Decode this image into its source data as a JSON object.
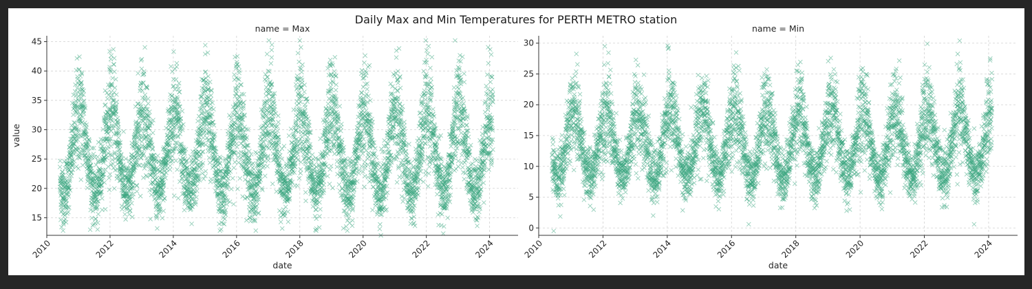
{
  "title": "Daily Max and Min Temperatures for PERTH METRO station",
  "colors": {
    "marker": "#3aa57f",
    "figure_bg": "#ffffff",
    "frame": "#262626"
  },
  "chart_data": [
    {
      "type": "scatter",
      "title": "name = Max",
      "xlabel": "date",
      "ylabel": "value",
      "xlim": [
        "2010",
        "2024.9"
      ],
      "ylim": [
        12,
        46
      ],
      "xticks": [
        "2010",
        "2012",
        "2014",
        "2016",
        "2018",
        "2020",
        "2022",
        "2024"
      ],
      "yticks": [
        15,
        20,
        25,
        30,
        35,
        40,
        45
      ],
      "marker": "x",
      "grid": true,
      "series": [
        {
          "x_range": [
            "2010-06-01",
            "2024-02-10"
          ],
          "seasonal_model": {
            "winter_mean": 19,
            "summer_mean": 33,
            "spread": 5,
            "peak": "January"
          },
          "points": [
            {
              "x": "2010-06-20",
              "y": 13.4
            },
            {
              "x": "2011-01-05",
              "y": 40.2
            },
            {
              "x": "2011-08-10",
              "y": 13.0
            },
            {
              "x": "2012-01-10",
              "y": 42.0
            },
            {
              "x": "2013-01-02",
              "y": 42.0
            },
            {
              "x": "2014-01-05",
              "y": 43.3
            },
            {
              "x": "2015-01-05",
              "y": 44.4
            },
            {
              "x": "2016-01-10",
              "y": 42.5
            },
            {
              "x": "2017-02-10",
              "y": 42.3
            },
            {
              "x": "2019-06-20",
              "y": 13.5
            },
            {
              "x": "2020-01-15",
              "y": 41.4
            },
            {
              "x": "2020-07-25",
              "y": 12.0
            },
            {
              "x": "2021-01-20",
              "y": 42.3
            },
            {
              "x": "2022-01-05",
              "y": 43.5
            },
            {
              "x": "2022-07-15",
              "y": 12.3
            },
            {
              "x": "2024-01-20",
              "y": 42.8
            }
          ]
        }
      ]
    },
    {
      "type": "scatter",
      "title": "name = Min",
      "xlabel": "date",
      "ylabel": "",
      "xlim": [
        "2010",
        "2024.9"
      ],
      "ylim": [
        -1.2,
        31.2
      ],
      "xticks": [
        "2010",
        "2012",
        "2014",
        "2016",
        "2018",
        "2020",
        "2022",
        "2024"
      ],
      "yticks": [
        0,
        5,
        10,
        15,
        20,
        25,
        30
      ],
      "marker": "x",
      "grid": true,
      "series": [
        {
          "x_range": [
            "2010-06-01",
            "2024-02-10"
          ],
          "seasonal_model": {
            "winter_mean": 8,
            "summer_mean": 19,
            "spread": 4,
            "peak": "February"
          },
          "points": [
            {
              "x": "2010-06-20",
              "y": -0.5
            },
            {
              "x": "2012-01-15",
              "y": 26.5
            },
            {
              "x": "2013-01-10",
              "y": 27.3
            },
            {
              "x": "2014-01-05",
              "y": 29.6
            },
            {
              "x": "2016-02-20",
              "y": 26.0
            },
            {
              "x": "2016-07-15",
              "y": 0.6
            },
            {
              "x": "2018-01-20",
              "y": 25.5
            },
            {
              "x": "2020-01-15",
              "y": 24.5
            },
            {
              "x": "2021-02-10",
              "y": 25.5
            },
            {
              "x": "2022-01-05",
              "y": 26.5
            },
            {
              "x": "2023-07-20",
              "y": 0.6
            },
            {
              "x": "2024-01-20",
              "y": 27.5
            }
          ]
        }
      ]
    }
  ]
}
